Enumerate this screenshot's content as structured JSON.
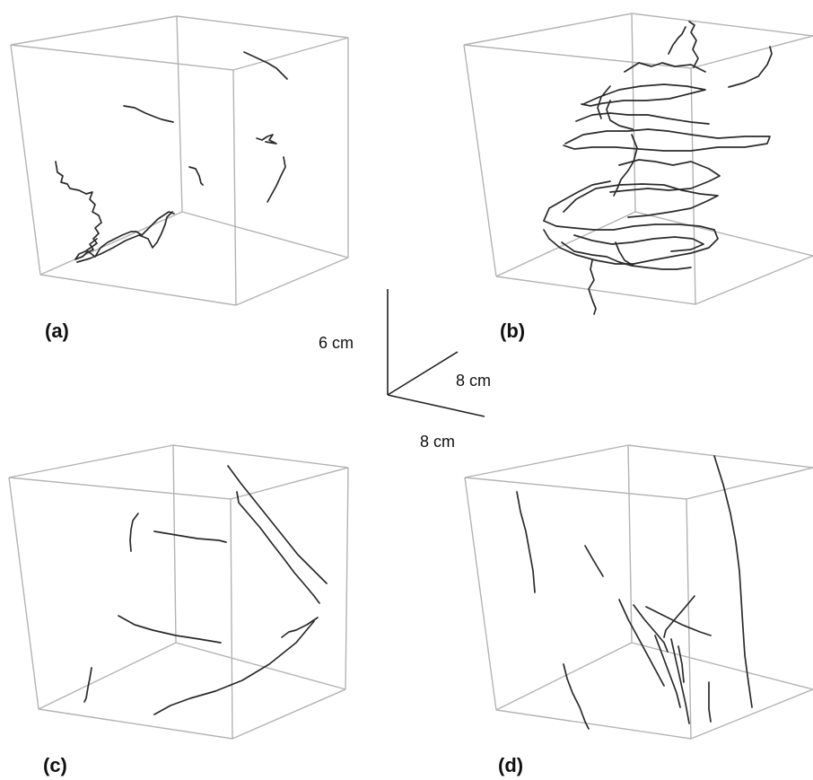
{
  "panels": [
    {
      "label": "(a)"
    },
    {
      "label": "(b)"
    },
    {
      "label": "(c)"
    },
    {
      "label": "(d)"
    }
  ],
  "scale_bar": {
    "vertical": "6 cm",
    "depth": "8 cm",
    "horizontal": "8 cm"
  }
}
